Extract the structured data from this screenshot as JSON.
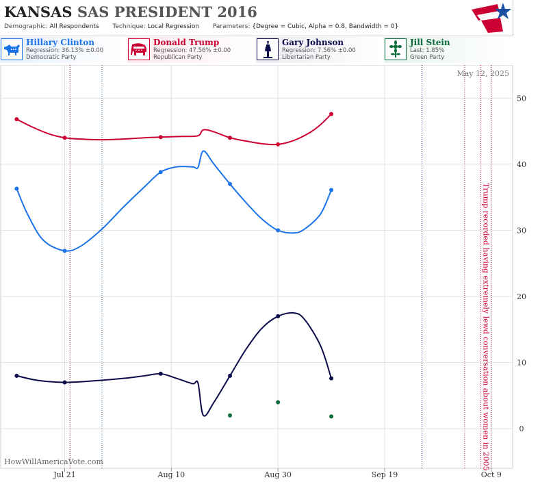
{
  "header": {
    "state": "KANSAS",
    "pollster": "SAS",
    "race": "PRESIDENT 2016",
    "demographic_label": "Demographic:",
    "demographic": "All Respondents",
    "technique_label": "Technique:",
    "technique": "Local Regression",
    "parameters_label": "Parameters:",
    "parameters": "{Degree = Cubic, Alpha = 0.8, Bandwidth = 0}"
  },
  "candidates": [
    {
      "name": "Hillary Clinton",
      "stat": "Regression: 36.13% ±0.00",
      "party": "Democratic Party",
      "color": "#1a73e8",
      "bg": "#e8f1fd",
      "icon": "donkey-icon"
    },
    {
      "name": "Donald Trump",
      "stat": "Regression: 47.56% ±0.00",
      "party": "Republican Party",
      "color": "#cc0033",
      "bg": "#fbe9ed",
      "icon": "elephant-icon"
    },
    {
      "name": "Gary Johnson",
      "stat": "Regression: 7.56% ±0.00",
      "party": "Libertarian Party",
      "color": "#0b0b4b",
      "bg": "#ecebf2",
      "icon": "liberty-torch-icon"
    },
    {
      "name": "Jill Stein",
      "stat": "Last: 1.85%",
      "party": "Green Party",
      "color": "#0b6b3a",
      "bg": "#e7f3ec",
      "icon": "sunflower-icon"
    }
  ],
  "watermark": "HowWillAmericaVote.com",
  "chart_data": {
    "type": "line",
    "title": "KANSAS SAS PRESIDENT 2016",
    "ylim": [
      -6,
      55
    ],
    "yticks": [
      0,
      10,
      20,
      30,
      40,
      50
    ],
    "xticks": [
      {
        "label": "Jul 21",
        "date": "2016-07-21"
      },
      {
        "label": "Aug 10",
        "date": "2016-08-10"
      },
      {
        "label": "Aug 30",
        "date": "2016-08-30"
      },
      {
        "label": "Sep 19",
        "date": "2016-09-19"
      },
      {
        "label": "Oct 9",
        "date": "2016-10-09"
      }
    ],
    "xlim": [
      "2016-07-09",
      "2016-10-13"
    ],
    "date_label": "May 12, 2025",
    "annotation": "Trump recorded having extremely lewd conversation about women in 2005",
    "annotation_date": "2016-10-07",
    "vlines": [
      {
        "date": "2016-07-22",
        "color": "#8b1a3b"
      },
      {
        "date": "2016-07-28",
        "color": "#1f6b8a"
      },
      {
        "date": "2016-09-26",
        "color": "#0b0b4b"
      },
      {
        "date": "2016-10-04",
        "color": "#8b1a3b"
      },
      {
        "date": "2016-10-07",
        "color": "#cc0033"
      },
      {
        "date": "2016-10-09",
        "color": "#8b1a3b"
      }
    ],
    "series": [
      {
        "name": "Donald Trump",
        "color": "#cc0033",
        "points": [
          [
            "2016-07-12",
            46.8
          ],
          [
            "2016-07-21",
            44.0
          ],
          [
            "2016-08-08",
            44.1
          ],
          [
            "2016-08-21",
            44.0
          ],
          [
            "2016-08-30",
            43.0
          ],
          [
            "2016-09-09",
            47.6
          ]
        ],
        "curve": [
          [
            "2016-07-12",
            46.8
          ],
          [
            "2016-07-15",
            45.6
          ],
          [
            "2016-07-18",
            44.6
          ],
          [
            "2016-07-21",
            44.0
          ],
          [
            "2016-07-24",
            43.8
          ],
          [
            "2016-07-28",
            43.7
          ],
          [
            "2016-08-01",
            43.8
          ],
          [
            "2016-08-05",
            44.0
          ],
          [
            "2016-08-08",
            44.1
          ],
          [
            "2016-08-12",
            44.2
          ],
          [
            "2016-08-15",
            44.3
          ],
          [
            "2016-08-16",
            45.2
          ],
          [
            "2016-08-18",
            44.9
          ],
          [
            "2016-08-21",
            44.0
          ],
          [
            "2016-08-24",
            43.5
          ],
          [
            "2016-08-27",
            43.1
          ],
          [
            "2016-08-30",
            43.0
          ],
          [
            "2016-09-02",
            43.6
          ],
          [
            "2016-09-05",
            44.8
          ],
          [
            "2016-09-07",
            46.0
          ],
          [
            "2016-09-09",
            47.6
          ]
        ]
      },
      {
        "name": "Hillary Clinton",
        "color": "#1a73e8",
        "points": [
          [
            "2016-07-12",
            36.3
          ],
          [
            "2016-07-21",
            26.9
          ],
          [
            "2016-08-08",
            38.8
          ],
          [
            "2016-08-21",
            37.0
          ],
          [
            "2016-08-30",
            30.0
          ],
          [
            "2016-09-09",
            36.1
          ]
        ],
        "curve": [
          [
            "2016-07-12",
            36.3
          ],
          [
            "2016-07-14",
            32.5
          ],
          [
            "2016-07-17",
            28.5
          ],
          [
            "2016-07-21",
            26.9
          ],
          [
            "2016-07-24",
            27.6
          ],
          [
            "2016-07-28",
            30.2
          ],
          [
            "2016-08-01",
            33.5
          ],
          [
            "2016-08-05",
            36.6
          ],
          [
            "2016-08-08",
            38.8
          ],
          [
            "2016-08-11",
            39.6
          ],
          [
            "2016-08-14",
            39.6
          ],
          [
            "2016-08-15",
            39.5
          ],
          [
            "2016-08-16",
            42.0
          ],
          [
            "2016-08-18",
            40.0
          ],
          [
            "2016-08-21",
            37.0
          ],
          [
            "2016-08-24",
            34.2
          ],
          [
            "2016-08-27",
            31.7
          ],
          [
            "2016-08-30",
            30.0
          ],
          [
            "2016-09-02",
            29.6
          ],
          [
            "2016-09-04",
            30.2
          ],
          [
            "2016-09-07",
            32.5
          ],
          [
            "2016-09-09",
            36.1
          ]
        ]
      },
      {
        "name": "Gary Johnson",
        "color": "#0b0b4b",
        "points": [
          [
            "2016-07-12",
            8.0
          ],
          [
            "2016-07-21",
            7.0
          ],
          [
            "2016-08-08",
            8.3
          ],
          [
            "2016-08-21",
            8.0
          ],
          [
            "2016-08-30",
            17.0
          ],
          [
            "2016-09-09",
            7.6
          ]
        ],
        "curve": [
          [
            "2016-07-12",
            8.0
          ],
          [
            "2016-07-16",
            7.3
          ],
          [
            "2016-07-21",
            7.0
          ],
          [
            "2016-07-26",
            7.2
          ],
          [
            "2016-08-01",
            7.6
          ],
          [
            "2016-08-05",
            8.0
          ],
          [
            "2016-08-08",
            8.3
          ],
          [
            "2016-08-11",
            7.6
          ],
          [
            "2016-08-14",
            6.8
          ],
          [
            "2016-08-15",
            6.9
          ],
          [
            "2016-08-16",
            2.0
          ],
          [
            "2016-08-18",
            4.0
          ],
          [
            "2016-08-21",
            8.0
          ],
          [
            "2016-08-24",
            12.0
          ],
          [
            "2016-08-27",
            15.2
          ],
          [
            "2016-08-30",
            17.0
          ],
          [
            "2016-09-02",
            17.5
          ],
          [
            "2016-09-04",
            16.5
          ],
          [
            "2016-09-07",
            12.5
          ],
          [
            "2016-09-09",
            7.6
          ]
        ]
      },
      {
        "name": "Jill Stein",
        "color": "#0b6b3a",
        "points": [
          [
            "2016-08-21",
            2.0
          ],
          [
            "2016-08-30",
            4.0
          ],
          [
            "2016-09-09",
            1.85
          ]
        ],
        "curve": []
      }
    ]
  }
}
